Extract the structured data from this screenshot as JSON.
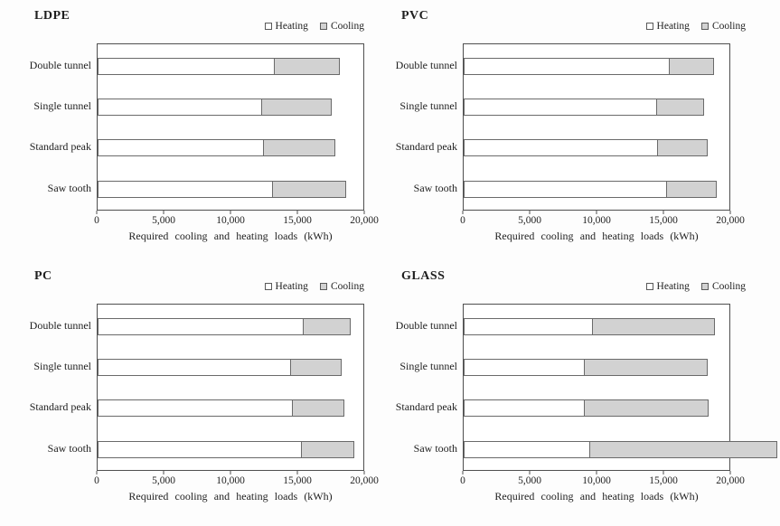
{
  "figure": {
    "background": "#fdfdfd",
    "axis_ticks": [
      "0",
      "5,000",
      "10,000",
      "15,000",
      "20,000"
    ],
    "xlabel": "Required cooling and heating loads (kWh)"
  },
  "colors": {
    "heating_fill": "#ffffff",
    "cooling_fill": "#d2d2d2",
    "bar_border": "#6a6a6a",
    "frame_border": "#4f4f4f",
    "text": "#1f1f1f"
  },
  "chart_data": [
    {
      "type": "bar",
      "orientation": "horizontal",
      "stacked": true,
      "title": "LDPE",
      "categories": [
        "Double tunnel",
        "Single tunnel",
        "Standard peak",
        "Saw tooth"
      ],
      "series": [
        {
          "name": "Heating",
          "values": [
            13300,
            12400,
            12550,
            13200
          ]
        },
        {
          "name": "Cooling",
          "values": [
            5000,
            5300,
            5400,
            5600
          ]
        }
      ],
      "totals": [
        18300,
        17700,
        17950,
        18800
      ],
      "xlabel": "Required cooling and heating loads (kWh)",
      "xlim": [
        0,
        20000
      ],
      "xticks": [
        "0",
        "5,000",
        "10,000",
        "15,000",
        "20,000"
      ],
      "legend_position": "top-right",
      "grid": false
    },
    {
      "type": "bar",
      "orientation": "horizontal",
      "stacked": true,
      "title": "PVC",
      "categories": [
        "Double tunnel",
        "Single tunnel",
        "Standard peak",
        "Saw tooth"
      ],
      "series": [
        {
          "name": "Heating",
          "values": [
            15500,
            14550,
            14650,
            15300
          ]
        },
        {
          "name": "Cooling",
          "values": [
            3400,
            3600,
            3800,
            3800
          ]
        }
      ],
      "totals": [
        18900,
        18150,
        18450,
        19100
      ],
      "xlabel": "Required cooling and heating loads (kWh)",
      "xlim": [
        0,
        20000
      ],
      "xticks": [
        "0",
        "5,000",
        "10,000",
        "15,000",
        "20,000"
      ],
      "legend_position": "top-right",
      "grid": false
    },
    {
      "type": "bar",
      "orientation": "horizontal",
      "stacked": true,
      "title": "PC",
      "categories": [
        "Double tunnel",
        "Single tunnel",
        "Standard peak",
        "Saw tooth"
      ],
      "series": [
        {
          "name": "Heating",
          "values": [
            15500,
            14550,
            14700,
            15350
          ]
        },
        {
          "name": "Cooling",
          "values": [
            3600,
            3900,
            3950,
            4050
          ]
        }
      ],
      "totals": [
        19100,
        18450,
        18650,
        19400
      ],
      "xlabel": "Required cooling and heating loads (kWh)",
      "xlim": [
        0,
        20000
      ],
      "xticks": [
        "0",
        "5,000",
        "10,000",
        "15,000",
        "20,000"
      ],
      "legend_position": "top-right",
      "grid": false
    },
    {
      "type": "bar",
      "orientation": "horizontal",
      "stacked": true,
      "title": "GLASS",
      "categories": [
        "Double tunnel",
        "Single tunnel",
        "Standard peak",
        "Saw tooth"
      ],
      "series": [
        {
          "name": "Heating",
          "values": [
            9700,
            9100,
            9100,
            9500
          ]
        },
        {
          "name": "Cooling",
          "values": [
            9300,
            9350,
            9400,
            14200
          ]
        }
      ],
      "totals": [
        19000,
        18450,
        18500,
        23700
      ],
      "note": "Saw tooth cooling bar is drawn past the 20,000 axis limit and is clipped at the right edge of the figure.",
      "xlabel": "Required cooling and heating loads (kWh)",
      "xlim": [
        0,
        20000
      ],
      "xticks": [
        "0",
        "5,000",
        "10,000",
        "15,000",
        "20,000"
      ],
      "legend_position": "top-right",
      "grid": false
    }
  ]
}
